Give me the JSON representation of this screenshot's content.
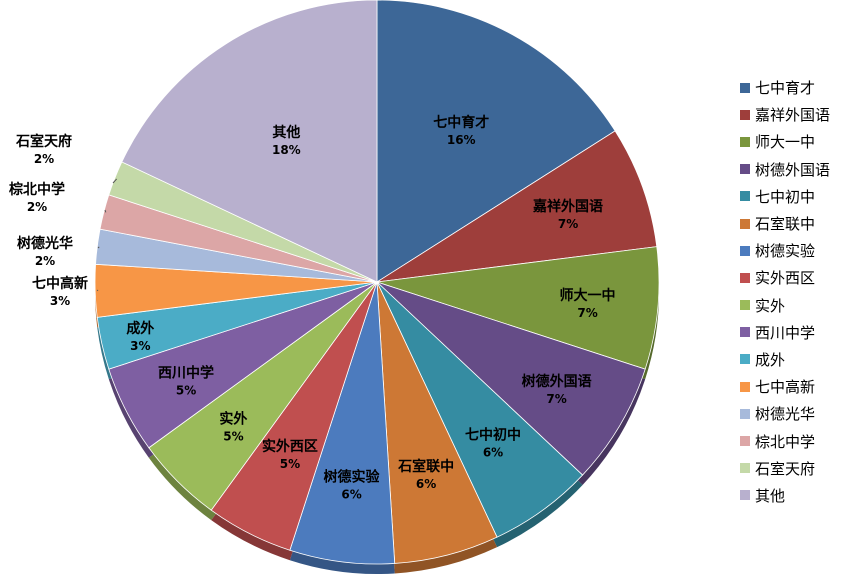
{
  "chart_data": {
    "type": "pie",
    "categories": [
      "七中育才",
      "嘉祥外国语",
      "师大一中",
      "树德外国语",
      "七中初中",
      "石室联中",
      "树德实验",
      "实外西区",
      "实外",
      "西川中学",
      "成外",
      "七中高新",
      "树德光华",
      "棕北中学",
      "石室天府",
      "其他"
    ],
    "values": [
      16,
      7,
      7,
      7,
      6,
      6,
      6,
      5,
      5,
      5,
      3,
      3,
      2,
      2,
      2,
      18
    ],
    "value_labels": [
      "16%",
      "7%",
      "7%",
      "7%",
      "6%",
      "6%",
      "6%",
      "5%",
      "5%",
      "5%",
      "3%",
      "3%",
      "2%",
      "2%",
      "2%",
      "18%"
    ],
    "colors": [
      "#3D6797",
      "#9E3E3B",
      "#7A963D",
      "#654C87",
      "#358CA2",
      "#CD7835",
      "#4C7BBE",
      "#C04F4F",
      "#9BBB5A",
      "#7E5FA2",
      "#4BACC6",
      "#F79646",
      "#A7BADB",
      "#DCA6A6",
      "#C4D9A8",
      "#B8B0CE"
    ],
    "legend_position": "right",
    "title": ""
  }
}
